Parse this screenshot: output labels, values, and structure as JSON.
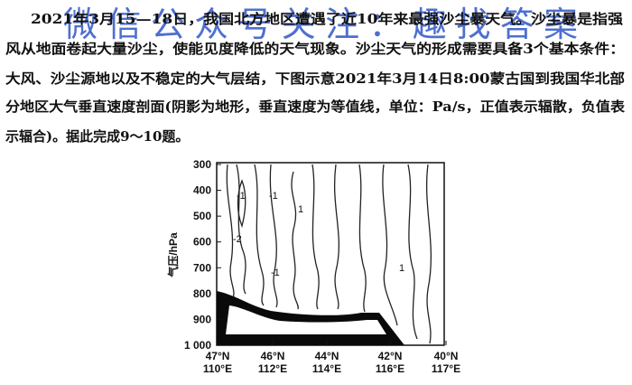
{
  "paragraph": {
    "lines": [
      "2021年3月15—18日，我国北方地区遭遇了近10年来最强沙尘暴天气。沙尘暴是指强",
      "风从地面卷起大量沙尘，使能见度降低的天气现象。沙尘天气的形成需要具备3个基本条件：",
      "大风、沙尘源地以及不稳定的大气层结，下图示意2021年3月14日8:00蒙古国到我国华北部",
      "分地区大气垂直速度剖面(阴影为地形，垂直速度为等值线，单位：Pa/s，正值表示辐散，负值表",
      "示辐合)。据此完成9～10题。"
    ]
  },
  "watermark": "微信公众号关注：趣找答案",
  "figure": {
    "y_label": "气压/hPa",
    "yticks": [
      "300",
      "400",
      "500",
      "600",
      "700",
      "800",
      "900",
      "1 000"
    ],
    "xticks": [
      [
        "47°N",
        "110°E"
      ],
      [
        "46°N",
        "112°E"
      ],
      [
        "44°N",
        "114°E"
      ],
      [
        "42°N",
        "116°E"
      ],
      [
        "40°N",
        "117°E"
      ]
    ],
    "contour_labels": [
      "-1",
      "-2",
      "-1",
      "1",
      "-1",
      "1"
    ]
  }
}
